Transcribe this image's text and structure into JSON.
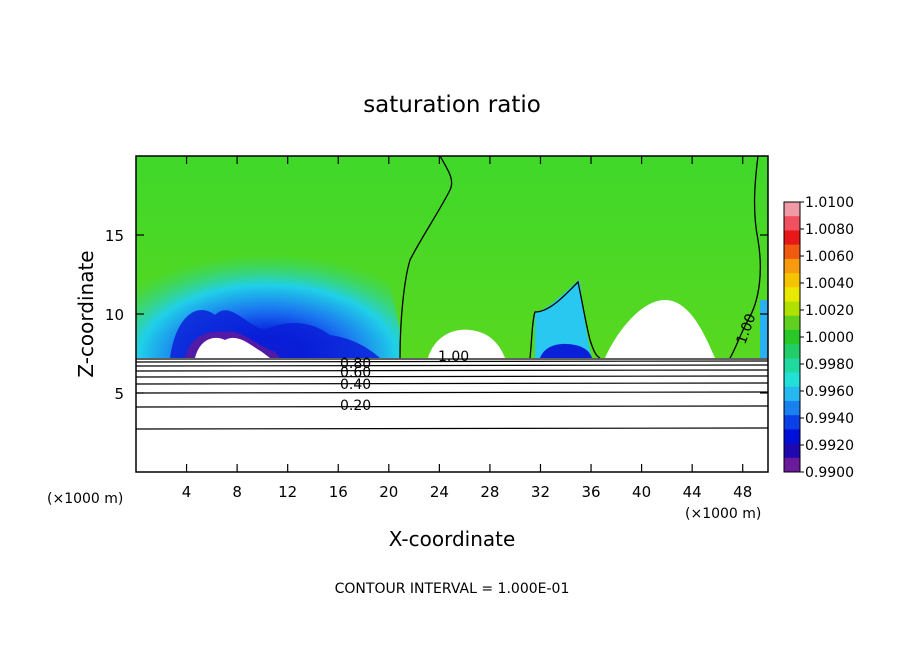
{
  "chart_data": {
    "type": "heatmap",
    "title": "saturation ratio",
    "xlabel": "X-coordinate",
    "ylabel": "Z-coordinate",
    "x_unit_left": "(×1000 m)",
    "x_unit_right": "(×1000 m)",
    "xlim": [
      0,
      50
    ],
    "ylim": [
      0,
      20
    ],
    "x_ticks": [
      "4",
      "8",
      "12",
      "16",
      "20",
      "24",
      "28",
      "32",
      "36",
      "40",
      "44",
      "48"
    ],
    "y_ticks": [
      "5",
      "10",
      "15"
    ],
    "colorbar": {
      "labels": [
        "1.0100",
        "1.0080",
        "1.0060",
        "1.0040",
        "1.0020",
        "1.0000",
        "0.9980",
        "0.9960",
        "0.9940",
        "0.9920",
        "0.9900"
      ],
      "range": [
        0.99,
        1.01
      ],
      "colors": [
        "#f09aa6",
        "#f05060",
        "#e81818",
        "#ef5a10",
        "#f79a10",
        "#f5c400",
        "#e8e800",
        "#b0e000",
        "#60d020",
        "#28c828",
        "#22cc66",
        "#20d8a0",
        "#20e0d8",
        "#28b8f0",
        "#1a80f0",
        "#0a40e8",
        "#0010d8",
        "#2008b0",
        "#6a1a9a"
      ]
    },
    "contour_labels": [
      "0.80",
      "0.60",
      "0.40",
      "0.20",
      "1.00",
      "1.00"
    ],
    "contour_interval_text": "CONTOUR INTERVAL = 1.000E-01"
  }
}
